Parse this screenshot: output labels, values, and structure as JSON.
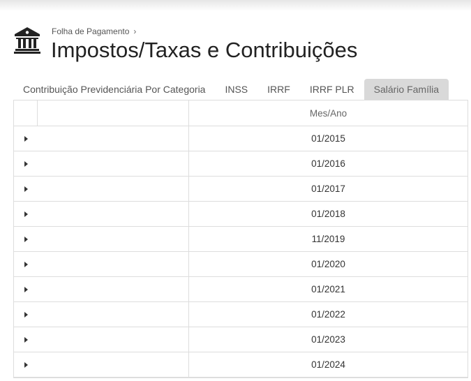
{
  "header": {
    "breadcrumb": "Folha de Pagamento",
    "breadcrumb_separator": "›",
    "title": "Impostos/Taxas e Contribuições",
    "icon": "bank-icon"
  },
  "tabs": [
    {
      "label": "Contribuição Previdenciária Por Categoria",
      "active": false
    },
    {
      "label": "INSS",
      "active": false
    },
    {
      "label": "IRRF",
      "active": false
    },
    {
      "label": "IRRF PLR",
      "active": false
    },
    {
      "label": "Salário Família",
      "active": true
    }
  ],
  "table": {
    "column_header": "Mes/Ano",
    "rows": [
      "01/2015",
      "01/2016",
      "01/2017",
      "01/2018",
      "11/2019",
      "01/2020",
      "01/2021",
      "01/2022",
      "01/2023",
      "01/2024"
    ]
  }
}
